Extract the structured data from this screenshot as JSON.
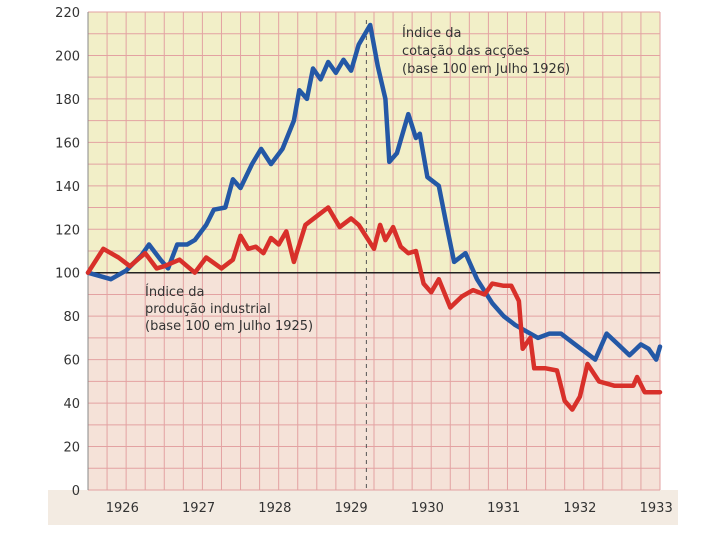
{
  "chart_data": {
    "type": "line",
    "title": "",
    "xlabel": "",
    "ylabel": "",
    "xlim": [
      1925.55,
      1933.05
    ],
    "ylim": [
      0,
      220
    ],
    "y_ticks": [
      0,
      20,
      40,
      60,
      80,
      100,
      120,
      140,
      160,
      180,
      200,
      220
    ],
    "x_ticks": [
      {
        "label": "1926",
        "value": 1926
      },
      {
        "label": "1927",
        "value": 1927
      },
      {
        "label": "1928",
        "value": 1928
      },
      {
        "label": "1929",
        "value": 1929
      },
      {
        "label": "1930",
        "value": 1930
      },
      {
        "label": "1931",
        "value": 1931
      },
      {
        "label": "1932",
        "value": 1932
      },
      {
        "label": "1933",
        "value": 1933
      }
    ],
    "grid": true,
    "reference_line": {
      "y": 100
    },
    "marker_line": {
      "x": 1929.2
    },
    "colors": {
      "stocks": "#2458a6",
      "industrial": "#d8302a",
      "grid": "#e3a2a2",
      "reference": "#222222",
      "bg_upper": "#f2efc8",
      "bg_lower": "#f5e2d8"
    },
    "annotations": {
      "stocks_label": [
        "Índice da",
        "cotação das acções",
        "(base 100 em Julho 1926)"
      ],
      "industrial_label": [
        "Índice da",
        "produção industrial",
        "(base 100 em Julho 1925)"
      ]
    },
    "series": [
      {
        "key": "stocks",
        "points": [
          [
            1925.55,
            100
          ],
          [
            1925.85,
            97
          ],
          [
            1926.05,
            101
          ],
          [
            1926.25,
            108
          ],
          [
            1926.35,
            113
          ],
          [
            1926.5,
            106
          ],
          [
            1926.6,
            102
          ],
          [
            1926.72,
            113
          ],
          [
            1926.85,
            113
          ],
          [
            1926.95,
            115
          ],
          [
            1927.1,
            122
          ],
          [
            1927.2,
            129
          ],
          [
            1927.35,
            130
          ],
          [
            1927.45,
            143
          ],
          [
            1927.55,
            139
          ],
          [
            1927.7,
            150
          ],
          [
            1927.82,
            157
          ],
          [
            1927.95,
            150
          ],
          [
            1928.1,
            157
          ],
          [
            1928.25,
            170
          ],
          [
            1928.32,
            184
          ],
          [
            1928.42,
            180
          ],
          [
            1928.5,
            194
          ],
          [
            1928.6,
            189
          ],
          [
            1928.7,
            197
          ],
          [
            1928.8,
            192
          ],
          [
            1928.9,
            198
          ],
          [
            1929.0,
            193
          ],
          [
            1929.1,
            205
          ],
          [
            1929.25,
            214
          ],
          [
            1929.35,
            195
          ],
          [
            1929.45,
            180
          ],
          [
            1929.5,
            151
          ],
          [
            1929.6,
            155
          ],
          [
            1929.75,
            173
          ],
          [
            1929.85,
            162
          ],
          [
            1929.9,
            164
          ],
          [
            1930.0,
            144
          ],
          [
            1930.15,
            140
          ],
          [
            1930.25,
            122
          ],
          [
            1930.35,
            105
          ],
          [
            1930.5,
            109
          ],
          [
            1930.65,
            97
          ],
          [
            1930.85,
            86
          ],
          [
            1931.0,
            80
          ],
          [
            1931.15,
            76
          ],
          [
            1931.3,
            73
          ],
          [
            1931.45,
            70
          ],
          [
            1931.6,
            72
          ],
          [
            1931.75,
            72
          ],
          [
            1931.9,
            68
          ],
          [
            1932.05,
            64
          ],
          [
            1932.2,
            60
          ],
          [
            1932.35,
            72
          ],
          [
            1932.5,
            67
          ],
          [
            1932.65,
            62
          ],
          [
            1932.8,
            67
          ],
          [
            1932.9,
            65
          ],
          [
            1933.0,
            60
          ],
          [
            1933.05,
            66
          ]
        ]
      },
      {
        "key": "industrial",
        "points": [
          [
            1925.55,
            100
          ],
          [
            1925.75,
            111
          ],
          [
            1925.95,
            107
          ],
          [
            1926.1,
            103
          ],
          [
            1926.3,
            109
          ],
          [
            1926.45,
            102
          ],
          [
            1926.55,
            103
          ],
          [
            1926.75,
            106
          ],
          [
            1926.95,
            100
          ],
          [
            1927.1,
            107
          ],
          [
            1927.3,
            102
          ],
          [
            1927.45,
            106
          ],
          [
            1927.55,
            117
          ],
          [
            1927.65,
            111
          ],
          [
            1927.75,
            112
          ],
          [
            1927.85,
            109
          ],
          [
            1927.95,
            116
          ],
          [
            1928.05,
            113
          ],
          [
            1928.15,
            119
          ],
          [
            1928.25,
            105
          ],
          [
            1928.4,
            122
          ],
          [
            1928.55,
            126
          ],
          [
            1928.7,
            130
          ],
          [
            1928.85,
            121
          ],
          [
            1929.0,
            125
          ],
          [
            1929.1,
            122
          ],
          [
            1929.3,
            111
          ],
          [
            1929.38,
            122
          ],
          [
            1929.45,
            115
          ],
          [
            1929.55,
            121
          ],
          [
            1929.65,
            112
          ],
          [
            1929.75,
            109
          ],
          [
            1929.85,
            110
          ],
          [
            1929.95,
            95
          ],
          [
            1930.05,
            91
          ],
          [
            1930.15,
            97
          ],
          [
            1930.3,
            84
          ],
          [
            1930.45,
            89
          ],
          [
            1930.6,
            92
          ],
          [
            1930.75,
            90
          ],
          [
            1930.85,
            95
          ],
          [
            1931.0,
            94
          ],
          [
            1931.1,
            94
          ],
          [
            1931.2,
            87
          ],
          [
            1931.25,
            65
          ],
          [
            1931.35,
            70
          ],
          [
            1931.4,
            56
          ],
          [
            1931.55,
            56
          ],
          [
            1931.7,
            55
          ],
          [
            1931.8,
            41
          ],
          [
            1931.9,
            37
          ],
          [
            1932.0,
            43
          ],
          [
            1932.1,
            58
          ],
          [
            1932.25,
            50
          ],
          [
            1932.45,
            48
          ],
          [
            1932.55,
            48
          ],
          [
            1932.7,
            48
          ],
          [
            1932.75,
            52
          ],
          [
            1932.85,
            45
          ],
          [
            1933.05,
            45
          ]
        ]
      }
    ]
  }
}
